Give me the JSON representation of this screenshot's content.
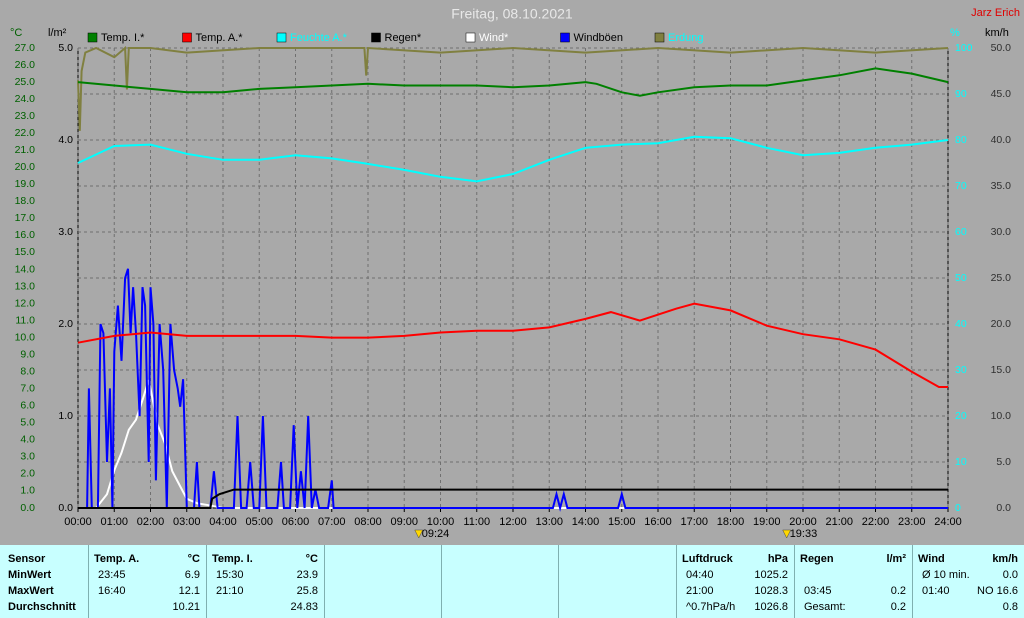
{
  "chart_data": {
    "type": "line",
    "title": "Freitag, 08.10.2021",
    "author": "Jarz Erich",
    "ylabel": "°C",
    "y2label": "l/m²",
    "y3label": "%",
    "y4label": "km/h",
    "xlim": [
      0,
      24
    ],
    "xticks": [
      {
        "value": 0,
        "label": "00:00"
      },
      {
        "value": 1,
        "label": "01:00"
      },
      {
        "value": 2,
        "label": "02:00"
      },
      {
        "value": 3,
        "label": "03:00"
      },
      {
        "value": 4,
        "label": "04:00"
      },
      {
        "value": 5,
        "label": "05:00"
      },
      {
        "value": 6,
        "label": "06:00"
      },
      {
        "value": 7,
        "label": "07:00"
      },
      {
        "value": 8,
        "label": "08:00"
      },
      {
        "value": 9,
        "label": "09:00"
      },
      {
        "value": 10,
        "label": "10:00"
      },
      {
        "value": 11,
        "label": "11:00"
      },
      {
        "value": 12,
        "label": "12:00"
      },
      {
        "value": 13,
        "label": "13:00"
      },
      {
        "value": 14,
        "label": "14:00"
      },
      {
        "value": 15,
        "label": "15:00"
      },
      {
        "value": 16,
        "label": "16:00"
      },
      {
        "value": 17,
        "label": "17:00"
      },
      {
        "value": 18,
        "label": "18:00"
      },
      {
        "value": 19,
        "label": "19:00"
      },
      {
        "value": 20,
        "label": "20:00"
      },
      {
        "value": 21,
        "label": "21:00"
      },
      {
        "value": 22,
        "label": "22:00"
      },
      {
        "value": 23,
        "label": "23:00"
      },
      {
        "value": 24,
        "label": "24:00"
      }
    ],
    "ylim": [
      0,
      27
    ],
    "yticks": [
      {
        "value": 0,
        "label": "0.0"
      },
      {
        "value": 1,
        "label": "1.0"
      },
      {
        "value": 2,
        "label": "2.0"
      },
      {
        "value": 3,
        "label": "3.0"
      },
      {
        "value": 4,
        "label": "4.0"
      },
      {
        "value": 5,
        "label": "5.0"
      },
      {
        "value": 6,
        "label": "6.0"
      },
      {
        "value": 7,
        "label": "7.0"
      },
      {
        "value": 8,
        "label": "8.0"
      },
      {
        "value": 9,
        "label": "9.0"
      },
      {
        "value": 10,
        "label": "10.0"
      },
      {
        "value": 11,
        "label": "11.0"
      },
      {
        "value": 12,
        "label": "12.0"
      },
      {
        "value": 13,
        "label": "13.0"
      },
      {
        "value": 14,
        "label": "14.0"
      },
      {
        "value": 15,
        "label": "15.0"
      },
      {
        "value": 16,
        "label": "16.0"
      },
      {
        "value": 17,
        "label": "17.0"
      },
      {
        "value": 18,
        "label": "18.0"
      },
      {
        "value": 19,
        "label": "19.0"
      },
      {
        "value": 20,
        "label": "20.0"
      },
      {
        "value": 21,
        "label": "21.0"
      },
      {
        "value": 22,
        "label": "22.0"
      },
      {
        "value": 23,
        "label": "23.0"
      },
      {
        "value": 24,
        "label": "24.0"
      },
      {
        "value": 25,
        "label": "25.0"
      },
      {
        "value": 26,
        "label": "26.0"
      },
      {
        "value": 27,
        "label": "27.0"
      }
    ],
    "y2lim": [
      0,
      5
    ],
    "y2ticks": [
      {
        "value": 0,
        "label": "0.0"
      },
      {
        "value": 1,
        "label": "1.0"
      },
      {
        "value": 2,
        "label": "2.0"
      },
      {
        "value": 3,
        "label": "3.0"
      },
      {
        "value": 4,
        "label": "4.0"
      },
      {
        "value": 5,
        "label": "5.0"
      }
    ],
    "y3lim": [
      0,
      100
    ],
    "y3ticks": [
      0,
      10,
      20,
      30,
      40,
      50,
      60,
      70,
      80,
      90,
      100
    ],
    "y4lim": [
      0,
      50
    ],
    "y4ticks": [
      {
        "value": 0,
        "label": "0.0"
      },
      {
        "value": 5,
        "label": "5.0"
      },
      {
        "value": 10,
        "label": "10.0"
      },
      {
        "value": 15,
        "label": "15.0"
      },
      {
        "value": 20,
        "label": "20.0"
      },
      {
        "value": 25,
        "label": "25.0"
      },
      {
        "value": 30,
        "label": "30.0"
      },
      {
        "value": 35,
        "label": "35.0"
      },
      {
        "value": 40,
        "label": "40.0"
      },
      {
        "value": 45,
        "label": "45.0"
      },
      {
        "value": 50,
        "label": "50.0"
      }
    ],
    "grid": true,
    "series": [
      {
        "name": "Temp. I.*",
        "color": "#008000",
        "axis": "y",
        "x": [
          0,
          1,
          2,
          3,
          4,
          5,
          6,
          7,
          8,
          9,
          10,
          11,
          12,
          13,
          14,
          14.3,
          15,
          15.5,
          16,
          17,
          18,
          19,
          20,
          21,
          22,
          23,
          24
        ],
        "values": [
          25.0,
          24.8,
          24.6,
          24.4,
          24.4,
          24.6,
          24.7,
          24.8,
          24.9,
          24.8,
          24.8,
          24.8,
          24.7,
          24.8,
          25.0,
          24.9,
          24.4,
          24.2,
          24.4,
          24.7,
          24.8,
          24.8,
          25.1,
          25.4,
          25.8,
          25.5,
          25.0
        ]
      },
      {
        "name": "Temp. A.*",
        "color": "#ff0000",
        "axis": "y",
        "x": [
          0,
          1,
          2,
          3,
          4,
          5,
          6,
          7,
          8,
          9,
          10,
          11,
          12,
          13,
          14,
          14.7,
          15.5,
          16.5,
          17,
          18,
          19,
          20,
          21,
          22,
          23,
          23.75,
          24
        ],
        "values": [
          9.7,
          10.1,
          10.3,
          10.1,
          10.1,
          10.1,
          10.1,
          10.0,
          10.0,
          10.1,
          10.3,
          10.4,
          10.4,
          10.6,
          11.1,
          11.5,
          11.0,
          11.7,
          12.0,
          11.6,
          10.7,
          10.2,
          9.9,
          9.3,
          8.0,
          7.1,
          7.1
        ]
      },
      {
        "name": "Feuchte A.*",
        "color": "#00ffff",
        "axis": "y3",
        "x": [
          0,
          1,
          2,
          3,
          4,
          5,
          6,
          7,
          8,
          9,
          10,
          11,
          12,
          13,
          14,
          15,
          16,
          17,
          18,
          19,
          20,
          21,
          22,
          23,
          24
        ],
        "values": [
          75,
          78.7,
          79,
          77,
          75.7,
          75.7,
          76.7,
          76,
          74.8,
          73.5,
          72,
          71,
          72.6,
          75.7,
          78.3,
          79,
          79.3,
          80.7,
          80.4,
          78.3,
          76.7,
          77.2,
          78.3,
          79,
          80
        ]
      },
      {
        "name": "Regen*",
        "color": "#000000",
        "axis": "y2",
        "x": [
          0,
          3.65,
          3.7,
          3.9,
          4.3,
          24
        ],
        "values": [
          0,
          0,
          0.1,
          0.15,
          0.2,
          0.2
        ]
      },
      {
        "name": "Wind*",
        "color": "#ffffff",
        "axis": "y4",
        "x": [
          0,
          0.5,
          0.8,
          1,
          1.2,
          1.4,
          1.6,
          1.8,
          1.95,
          2.05,
          2.2,
          2.4,
          2.6,
          2.8,
          3,
          3.3,
          3.6,
          4,
          24
        ],
        "values": [
          0,
          0,
          1.5,
          4.1,
          6,
          8.5,
          9.6,
          12,
          13.9,
          12,
          9,
          7,
          4,
          2.5,
          1,
          0.5,
          0.3,
          0,
          0
        ]
      },
      {
        "name": "Windböen",
        "color": "#0000ff",
        "axis": "y4",
        "x": [
          0,
          0.25,
          0.3,
          0.38,
          0.55,
          0.62,
          0.7,
          0.8,
          0.88,
          0.95,
          1.0,
          1.1,
          1.2,
          1.3,
          1.38,
          1.45,
          1.52,
          1.6,
          1.7,
          1.78,
          1.85,
          1.95,
          2.0,
          2.08,
          2.15,
          2.25,
          2.35,
          2.45,
          2.55,
          2.65,
          2.75,
          2.82,
          2.9,
          3.0,
          3.2,
          3.28,
          3.35,
          3.65,
          3.75,
          3.85,
          4.3,
          4.4,
          4.5,
          4.65,
          4.75,
          4.85,
          5.0,
          5.1,
          5.2,
          5.5,
          5.6,
          5.68,
          5.85,
          5.95,
          6.05,
          6.15,
          6.25,
          6.35,
          6.45,
          6.55,
          6.65,
          6.9,
          7.0,
          7.05,
          13.1,
          13.2,
          13.3,
          13.4,
          13.5,
          14.9,
          15.0,
          15.1,
          24
        ],
        "values": [
          0,
          0,
          13,
          0,
          0,
          20,
          19,
          5,
          13,
          0,
          17,
          22,
          16,
          25,
          26,
          19,
          24,
          19,
          10,
          24,
          22,
          5,
          24,
          20,
          3,
          20,
          15,
          0,
          20,
          15,
          13,
          11,
          14,
          0,
          0,
          5,
          0,
          0,
          4,
          0,
          0,
          10,
          0,
          0,
          5,
          0,
          0,
          10,
          0,
          0,
          5,
          0,
          0,
          9,
          0,
          4,
          0,
          10,
          0,
          2,
          0,
          0,
          3,
          0,
          0,
          1.5,
          0,
          1.5,
          0,
          0,
          1.5,
          0,
          0
        ]
      },
      {
        "name": "Erdung",
        "color": "#808040",
        "axis": "y3",
        "x": [
          0,
          0.05,
          0.1,
          0.2,
          0.5,
          1,
          1.3,
          1.35,
          1.4,
          2,
          3,
          5,
          7,
          7.9,
          7.95,
          8,
          10,
          12,
          14,
          16,
          18,
          20,
          22,
          24
        ],
        "values": [
          93,
          82,
          95,
          99,
          100,
          98,
          100,
          91,
          100,
          100,
          99,
          100,
          100,
          100,
          94,
          100,
          99,
          100,
          99,
          100,
          99,
          100,
          99,
          100
        ]
      }
    ],
    "annotations": [
      {
        "text": "09:24",
        "x": 9.4
      },
      {
        "text": "19:33",
        "x": 19.55
      }
    ]
  },
  "table": {
    "header": [
      "Sensor",
      {
        "name": "Temp. A.",
        "unit": "°C"
      },
      {
        "name": "Temp. I.",
        "unit": "°C"
      },
      {
        "name": "Luftdruck",
        "unit": "hPa"
      },
      {
        "name": "Regen",
        "unit": "l/m²"
      },
      {
        "name": "Wind",
        "unit": "km/h"
      }
    ],
    "rows": [
      {
        "label": "MinWert",
        "cells": [
          {
            "left": "23:45",
            "right": "6.9"
          },
          {
            "left": "15:30",
            "right": "23.9"
          },
          {
            "left": "04:40",
            "right": "1025.2"
          },
          null,
          {
            "left": "Ø 10 min.",
            "right": "0.0"
          }
        ]
      },
      {
        "label": "MaxWert",
        "cells": [
          {
            "left": "16:40",
            "right": "12.1"
          },
          {
            "left": "21:10",
            "right": "25.8"
          },
          {
            "left": "21:00",
            "right": "1028.3"
          },
          {
            "left": "03:45",
            "right": "0.2"
          },
          {
            "left": "01:40",
            "right": "NO 16.6"
          }
        ]
      },
      {
        "label": "Durchschnitt",
        "cells": [
          {
            "right": "10.21"
          },
          {
            "right": "24.83"
          },
          {
            "left": "^0.7hPa/h",
            "right": "1026.8"
          },
          {
            "left": "Gesamt:",
            "right": "0.2"
          },
          {
            "right": "0.8"
          }
        ]
      }
    ]
  }
}
